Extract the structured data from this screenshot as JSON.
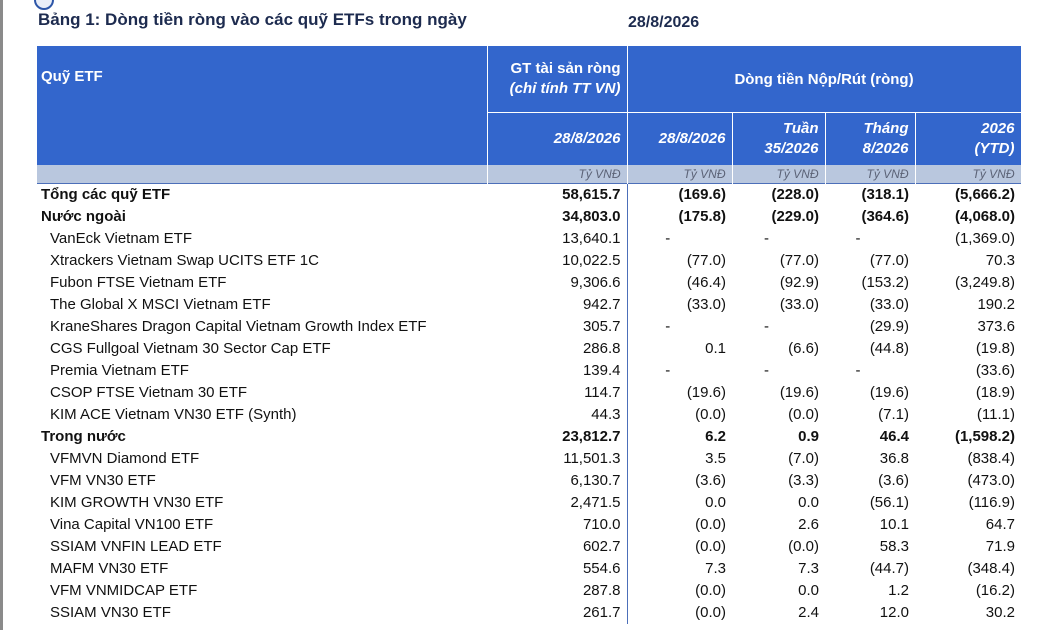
{
  "title": "Bảng 1: Dòng tiền ròng vào các quỹ ETFs trong ngày",
  "title_date": "28/8/2026",
  "header": {
    "fund_col": "Quỹ ETF",
    "nav_col_line1": "GT tài sản ròng",
    "nav_col_line2": "(chỉ tính TT VN)",
    "flow_group": "Dòng tiền Nộp/Rút (ròng)",
    "nav_date": "28/8/2026",
    "day": "28/8/2026",
    "week_line1": "Tuần",
    "week_line2": "35/2026",
    "month_line1": "Tháng",
    "month_line2": "8/2026",
    "ytd_line1": "2026",
    "ytd_line2": "(YTD)",
    "unit": "Tỷ VNĐ"
  },
  "rows": [
    {
      "name": "Tổng các quỹ ETF",
      "nav": "58,615.7",
      "day": "(169.6)",
      "week": "(228.0)",
      "month": "(318.1)",
      "ytd": "(5,666.2)"
    },
    {
      "name": "Nước ngoài",
      "nav": "34,803.0",
      "day": "(175.8)",
      "week": "(229.0)",
      "month": "(364.6)",
      "ytd": "(4,068.0)"
    },
    {
      "name": "VanEck Vietnam ETF",
      "nav": "13,640.1",
      "day": "-",
      "week": "-",
      "month": "-",
      "ytd": "(1,369.0)"
    },
    {
      "name": "Xtrackers Vietnam Swap UCITS ETF 1C",
      "nav": "10,022.5",
      "day": "(77.0)",
      "week": "(77.0)",
      "month": "(77.0)",
      "ytd": "70.3"
    },
    {
      "name": "Fubon FTSE Vietnam ETF",
      "nav": "9,306.6",
      "day": "(46.4)",
      "week": "(92.9)",
      "month": "(153.2)",
      "ytd": "(3,249.8)"
    },
    {
      "name": "The Global X MSCI Vietnam ETF",
      "nav": "942.7",
      "day": "(33.0)",
      "week": "(33.0)",
      "month": "(33.0)",
      "ytd": "190.2"
    },
    {
      "name": "KraneShares Dragon Capital Vietnam Growth Index ETF",
      "nav": "305.7",
      "day": "-",
      "week": "-",
      "month": "(29.9)",
      "ytd": "373.6"
    },
    {
      "name": "CGS Fullgoal Vietnam 30 Sector Cap ETF",
      "nav": "286.8",
      "day": "0.1",
      "week": "(6.6)",
      "month": "(44.8)",
      "ytd": "(19.8)"
    },
    {
      "name": "Premia Vietnam ETF",
      "nav": "139.4",
      "day": "-",
      "week": "-",
      "month": "-",
      "ytd": "(33.6)"
    },
    {
      "name": "CSOP FTSE Vietnam 30 ETF",
      "nav": "114.7",
      "day": "(19.6)",
      "week": "(19.6)",
      "month": "(19.6)",
      "ytd": "(18.9)"
    },
    {
      "name": "KIM ACE Vietnam VN30 ETF (Synth)",
      "nav": "44.3",
      "day": "(0.0)",
      "week": "(0.0)",
      "month": "(7.1)",
      "ytd": "(11.1)"
    },
    {
      "name": "Trong nước",
      "nav": "23,812.7",
      "day": "6.2",
      "week": "0.9",
      "month": "46.4",
      "ytd": "(1,598.2)"
    },
    {
      "name": "VFMVN Diamond ETF",
      "nav": "11,501.3",
      "day": "3.5",
      "week": "(7.0)",
      "month": "36.8",
      "ytd": "(838.4)"
    },
    {
      "name": "VFM VN30 ETF",
      "nav": "6,130.7",
      "day": "(3.6)",
      "week": "(3.3)",
      "month": "(3.6)",
      "ytd": "(473.0)"
    },
    {
      "name": "KIM GROWTH VN30 ETF",
      "nav": "2,471.5",
      "day": "0.0",
      "week": "0.0",
      "month": "(56.1)",
      "ytd": "(116.9)"
    },
    {
      "name": "Vina Capital VN100 ETF",
      "nav": "710.0",
      "day": "(0.0)",
      "week": "2.6",
      "month": "10.1",
      "ytd": "64.7"
    },
    {
      "name": "SSIAM VNFIN LEAD ETF",
      "nav": "602.7",
      "day": "(0.0)",
      "week": "(0.0)",
      "month": "58.3",
      "ytd": "71.9"
    },
    {
      "name": "MAFM VN30 ETF",
      "nav": "554.6",
      "day": "7.3",
      "week": "7.3",
      "month": "(44.7)",
      "ytd": "(348.4)"
    },
    {
      "name": "VFM VNMIDCAP ETF",
      "nav": "287.8",
      "day": "(0.0)",
      "week": "0.0",
      "month": "1.2",
      "ytd": "(16.2)"
    },
    {
      "name": "SSIAM VN30 ETF",
      "nav": "261.7",
      "day": "(0.0)",
      "week": "2.4",
      "month": "12.0",
      "ytd": "30.2"
    }
  ]
}
